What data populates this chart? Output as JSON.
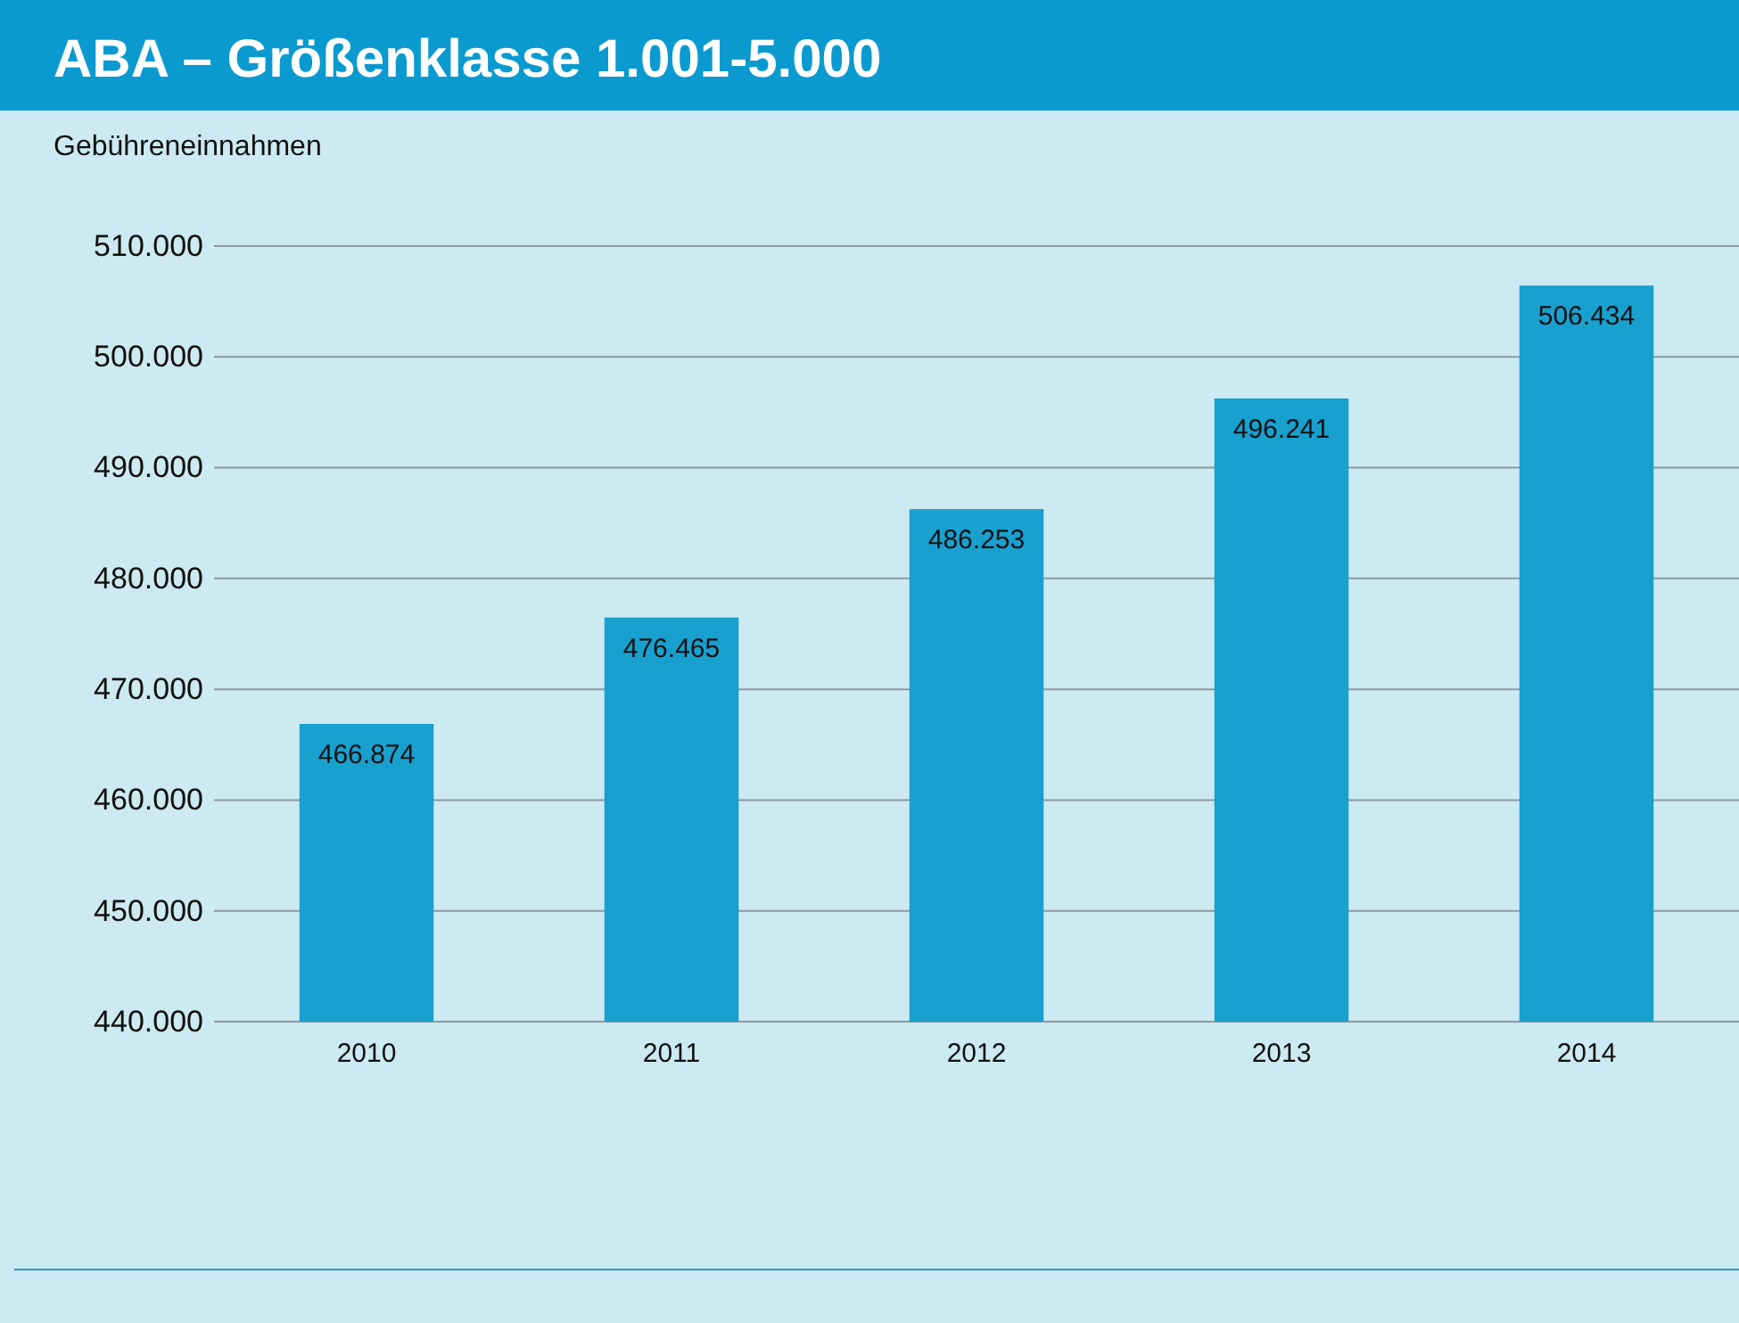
{
  "chart_data": {
    "type": "bar",
    "title": "ABA – Größenklasse 1.001-5.000",
    "ylabel": "Gebühreneinnahmen",
    "categories": [
      "2010",
      "2011",
      "2012",
      "2013",
      "2014"
    ],
    "values": [
      466874,
      476465,
      486253,
      496241,
      506434
    ],
    "value_labels": [
      "466.874",
      "476.465",
      "486.253",
      "496.241",
      "506.434"
    ],
    "color": "#18a0cf",
    "ylim": [
      440000,
      510000
    ],
    "yticks": [
      {
        "value": 440000,
        "label": "440.000"
      },
      {
        "value": 450000,
        "label": "450.000"
      },
      {
        "value": 460000,
        "label": "460.000"
      },
      {
        "value": 470000,
        "label": "470.000"
      },
      {
        "value": 480000,
        "label": "480.000"
      },
      {
        "value": 490000,
        "label": "490.000"
      },
      {
        "value": 500000,
        "label": "500.000"
      },
      {
        "value": 510000,
        "label": "510.000"
      }
    ],
    "grid": "y"
  }
}
